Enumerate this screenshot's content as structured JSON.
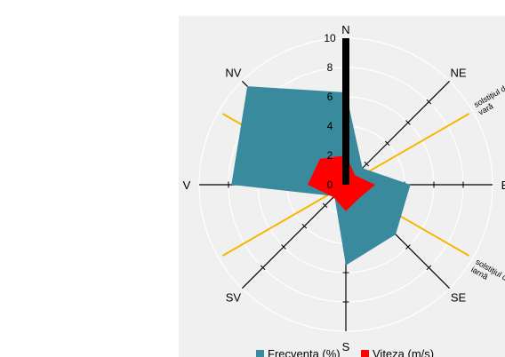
{
  "chart_data": {
    "type": "radar",
    "directions": [
      "N",
      "NE",
      "E",
      "SE",
      "S",
      "SV",
      "V",
      "NV"
    ],
    "radial_ticks": [
      "0",
      "2",
      "4",
      "6",
      "8",
      "10"
    ],
    "rlim": [
      0,
      10
    ],
    "series": [
      {
        "name": "Frecvența (%)",
        "color": "#3a8a9e",
        "values": [
          6.3,
          1.6,
          4.4,
          4.8,
          5.5,
          1.1,
          7.8,
          9.5
        ]
      },
      {
        "name": "Viteza (m/s)",
        "color": "#ff0000",
        "values": [
          2.0,
          0.9,
          2.0,
          1.3,
          1.8,
          1.2,
          2.6,
          2.5
        ]
      }
    ],
    "north_bar": {
      "value": 10,
      "color": "#000000"
    },
    "solstice_lines": [
      {
        "label_lines": [
          "solstițiul de",
          "vară"
        ],
        "color": "#f5b800"
      },
      {
        "label_lines": [
          "solstițiul de",
          "iarnă"
        ],
        "color": "#f5b800"
      }
    ],
    "legend_position": "bottom"
  }
}
